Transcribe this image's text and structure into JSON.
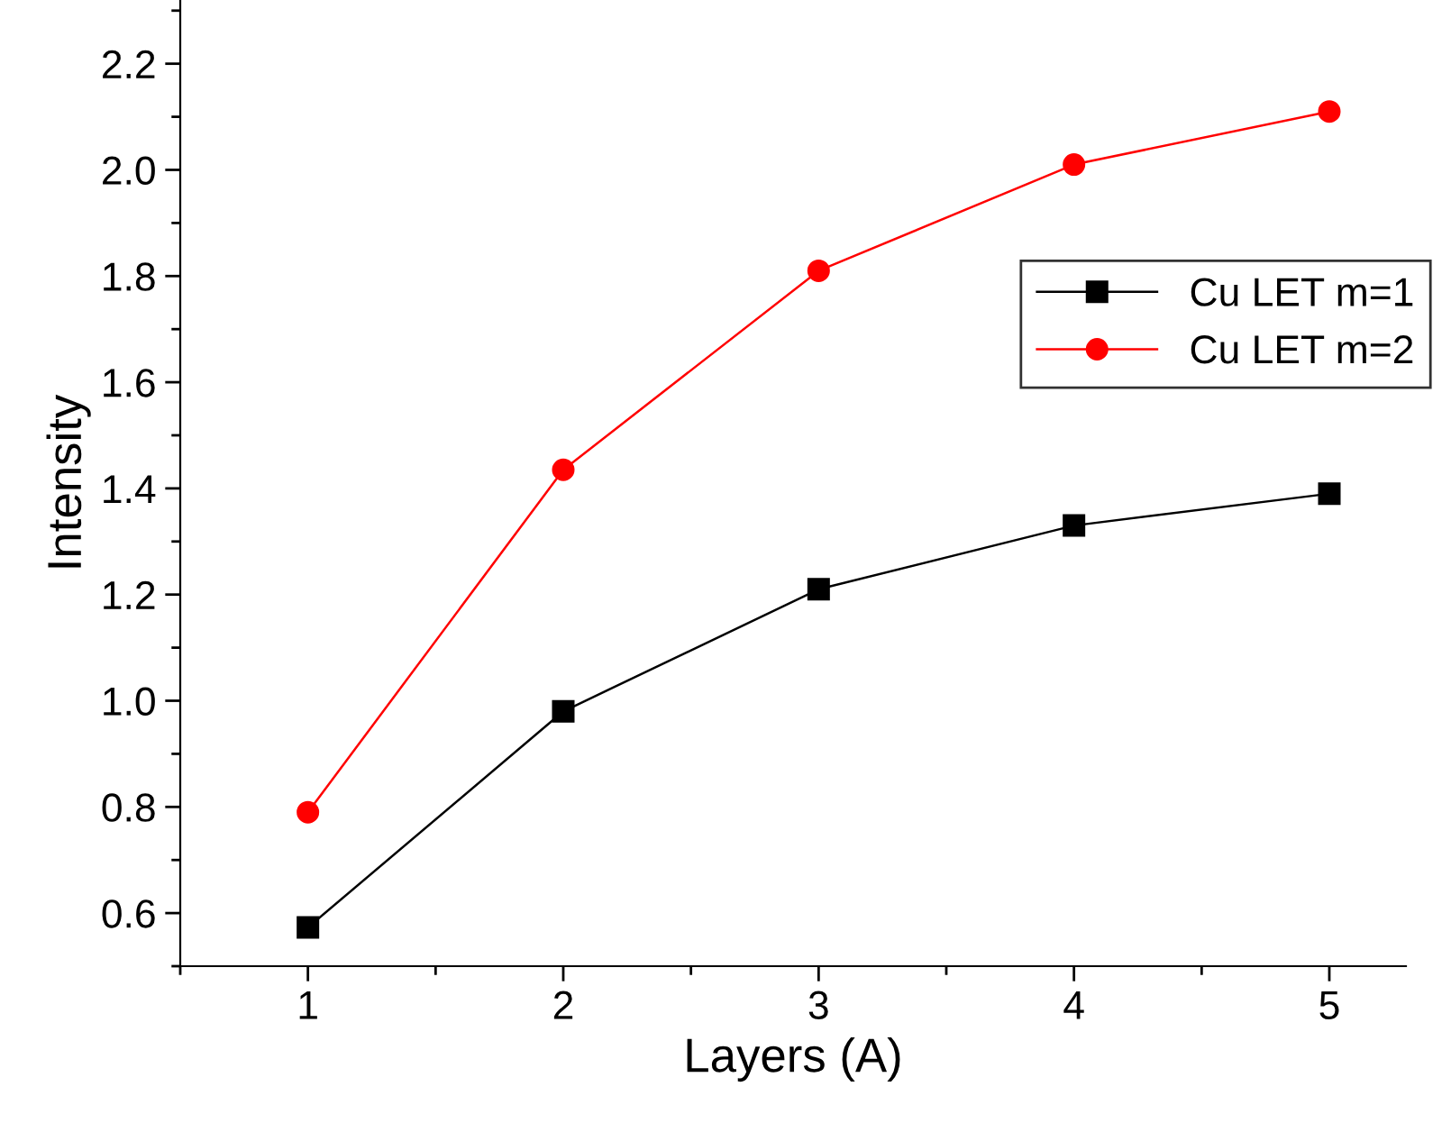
{
  "chart_data": {
    "type": "line",
    "xlabel": "Layers (A)",
    "ylabel": "Intensity",
    "x": [
      1,
      2,
      3,
      4,
      5
    ],
    "series": [
      {
        "name": "Cu LET m=1",
        "color": "#000000",
        "marker": "square",
        "values": [
          0.573,
          0.98,
          1.21,
          1.33,
          1.39
        ]
      },
      {
        "name": "Cu LET m=2",
        "color": "#ff0000",
        "marker": "circle",
        "values": [
          0.79,
          1.435,
          1.81,
          2.01,
          2.11
        ]
      }
    ],
    "xlim": [
      0.5,
      5.3
    ],
    "xticks": [
      1,
      2,
      3,
      4,
      5
    ],
    "ylim": [
      0.5,
      2.32
    ],
    "yticks": [
      {
        "value": 0.6,
        "label": "0.6"
      },
      {
        "value": 0.8,
        "label": "0.8"
      },
      {
        "value": 1.0,
        "label": "1.0"
      },
      {
        "value": 1.2,
        "label": "1.2"
      },
      {
        "value": 1.4,
        "label": "1.4"
      },
      {
        "value": 1.6,
        "label": "1.6"
      },
      {
        "value": 1.8,
        "label": "1.8"
      },
      {
        "value": 2.0,
        "label": "2.0"
      },
      {
        "value": 2.2,
        "label": "2.2"
      }
    ],
    "grid": false,
    "legend": "top right",
    "line_style": "solid"
  }
}
